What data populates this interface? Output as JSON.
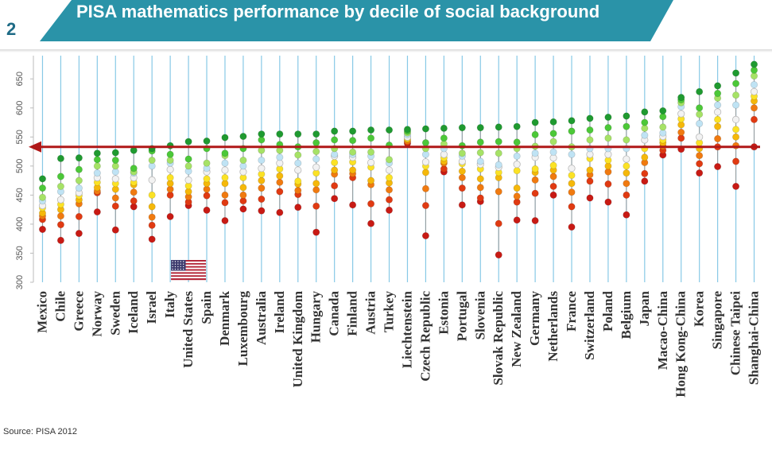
{
  "slide_number": "2",
  "title": "PISA mathematics performance by decile of social background",
  "source": "Source: PISA 2012",
  "colors": {
    "title_band": "#2a93a8",
    "slide_number": "#1e6b86",
    "gridline": "#87c9e6",
    "average_line": "#b01818",
    "range_line": "#9a9a9a",
    "decile_colors": [
      "#c81a14",
      "#e03a12",
      "#f07a10",
      "#f5b80a",
      "#fbe225",
      "#f2f2f2",
      "#bfe3f4",
      "#a6e266",
      "#4cc838",
      "#1f9a30"
    ]
  },
  "chart_data": {
    "type": "scatter",
    "title": "PISA mathematics performance by decile of social background",
    "ylabel": "",
    "xlabel": "",
    "ylim": [
      300,
      690
    ],
    "y_ticks": [
      300,
      350,
      400,
      450,
      500,
      550,
      600,
      650
    ],
    "grid": true,
    "oecd_average_line": 533,
    "series_description": "10 deciles of social background, bottom decile (red) to top decile (dark green)",
    "categories": [
      "Mexico",
      "Chile",
      "Greece",
      "Norway",
      "Sweden",
      "Iceland",
      "Israel",
      "Italy",
      "United States",
      "Spain",
      "Denmark",
      "Luxembourg",
      "Australia",
      "Ireland",
      "United Kingdom",
      "Hungary",
      "Canada",
      "Finland",
      "Austria",
      "Turkey",
      "Liechtenstein",
      "Czech Republic",
      "Estonia",
      "Portugal",
      "Slovenia",
      "Slovak Republic",
      "New Zealand",
      "Germany",
      "Netherlands",
      "France",
      "Switzerland",
      "Poland",
      "Belgium",
      "Japan",
      "Macao-China",
      "Hong Kong-China",
      "Korea",
      "Singapore",
      "Chinese Taipei",
      "Shanghai-China"
    ],
    "flag_category": "United States",
    "deciles": [
      [
        391,
        408,
        414,
        419,
        428,
        432,
        440,
        446,
        462,
        478
      ],
      [
        372,
        399,
        414,
        425,
        434,
        442,
        456,
        465,
        482,
        513
      ],
      [
        384,
        413,
        435,
        442,
        449,
        454,
        462,
        475,
        494,
        514
      ],
      [
        421,
        454,
        457,
        463,
        472,
        480,
        488,
        500,
        511,
        522
      ],
      [
        390,
        431,
        445,
        460,
        470,
        478,
        490,
        500,
        510,
        523
      ],
      [
        430,
        440,
        455,
        468,
        472,
        480,
        488,
        490,
        496,
        527
      ],
      [
        374,
        398,
        412,
        430,
        450,
        476,
        500,
        510,
        526,
        530
      ],
      [
        413,
        450,
        460,
        470,
        480,
        494,
        505,
        510,
        520,
        535
      ],
      [
        432,
        438,
        447,
        456,
        466,
        476,
        491,
        500,
        512,
        542
      ],
      [
        424,
        449,
        460,
        470,
        478,
        490,
        496,
        505,
        530,
        543
      ],
      [
        406,
        437,
        450,
        470,
        480,
        493,
        505,
        518,
        522,
        549
      ],
      [
        426,
        440,
        450,
        463,
        480,
        490,
        500,
        510,
        530,
        551
      ],
      [
        423,
        443,
        462,
        475,
        486,
        496,
        510,
        527,
        545,
        555
      ],
      [
        420,
        456,
        472,
        483,
        495,
        505,
        515,
        527,
        537,
        555
      ],
      [
        429,
        451,
        458,
        469,
        474,
        493,
        505,
        519,
        533,
        555
      ],
      [
        386,
        431,
        459,
        470,
        488,
        498,
        512,
        525,
        540,
        555
      ],
      [
        444,
        466,
        486,
        493,
        506,
        517,
        520,
        530,
        545,
        560
      ],
      [
        433,
        480,
        487,
        493,
        507,
        515,
        520,
        524,
        544,
        560
      ],
      [
        401,
        435,
        468,
        475,
        498,
        506,
        517,
        524,
        548,
        562
      ],
      [
        424,
        442,
        459,
        471,
        480,
        493,
        505,
        511,
        536,
        562
      ],
      [
        539,
        541,
        543,
        546,
        548,
        550,
        554,
        557,
        560,
        563
      ],
      [
        380,
        432,
        461,
        489,
        500,
        507,
        520,
        530,
        540,
        564
      ],
      [
        490,
        495,
        505,
        508,
        514,
        520,
        530,
        538,
        548,
        565
      ],
      [
        433,
        462,
        480,
        491,
        504,
        508,
        517,
        522,
        535,
        566
      ],
      [
        439,
        445,
        463,
        478,
        495,
        503,
        508,
        523,
        541,
        566
      ],
      [
        347,
        401,
        456,
        480,
        489,
        498,
        502,
        522,
        542,
        567
      ],
      [
        407,
        438,
        448,
        462,
        492,
        503,
        517,
        530,
        541,
        568
      ],
      [
        406,
        453,
        476,
        489,
        495,
        515,
        522,
        534,
        554,
        575
      ],
      [
        450,
        465,
        482,
        493,
        501,
        514,
        524,
        542,
        556,
        576
      ],
      [
        395,
        430,
        455,
        470,
        484,
        496,
        520,
        533,
        560,
        578
      ],
      [
        445,
        474,
        485,
        493,
        513,
        520,
        530,
        545,
        562,
        582
      ],
      [
        438,
        469,
        490,
        500,
        510,
        520,
        530,
        548,
        566,
        584
      ],
      [
        416,
        450,
        470,
        488,
        500,
        512,
        530,
        545,
        568,
        586
      ],
      [
        474,
        487,
        506,
        515,
        530,
        545,
        553,
        565,
        575,
        593
      ],
      [
        519,
        527,
        534,
        540,
        545,
        551,
        557,
        567,
        585,
        595
      ],
      [
        529,
        548,
        558,
        571,
        581,
        590,
        602,
        609,
        614,
        618
      ],
      [
        488,
        504,
        518,
        530,
        540,
        550,
        573,
        589,
        600,
        628
      ],
      [
        499,
        533,
        547,
        568,
        580,
        593,
        605,
        617,
        625,
        638
      ],
      [
        465,
        508,
        535,
        550,
        563,
        580,
        605,
        622,
        642,
        660
      ],
      [
        533,
        580,
        600,
        612,
        620,
        628,
        640,
        655,
        665,
        675
      ]
    ]
  }
}
